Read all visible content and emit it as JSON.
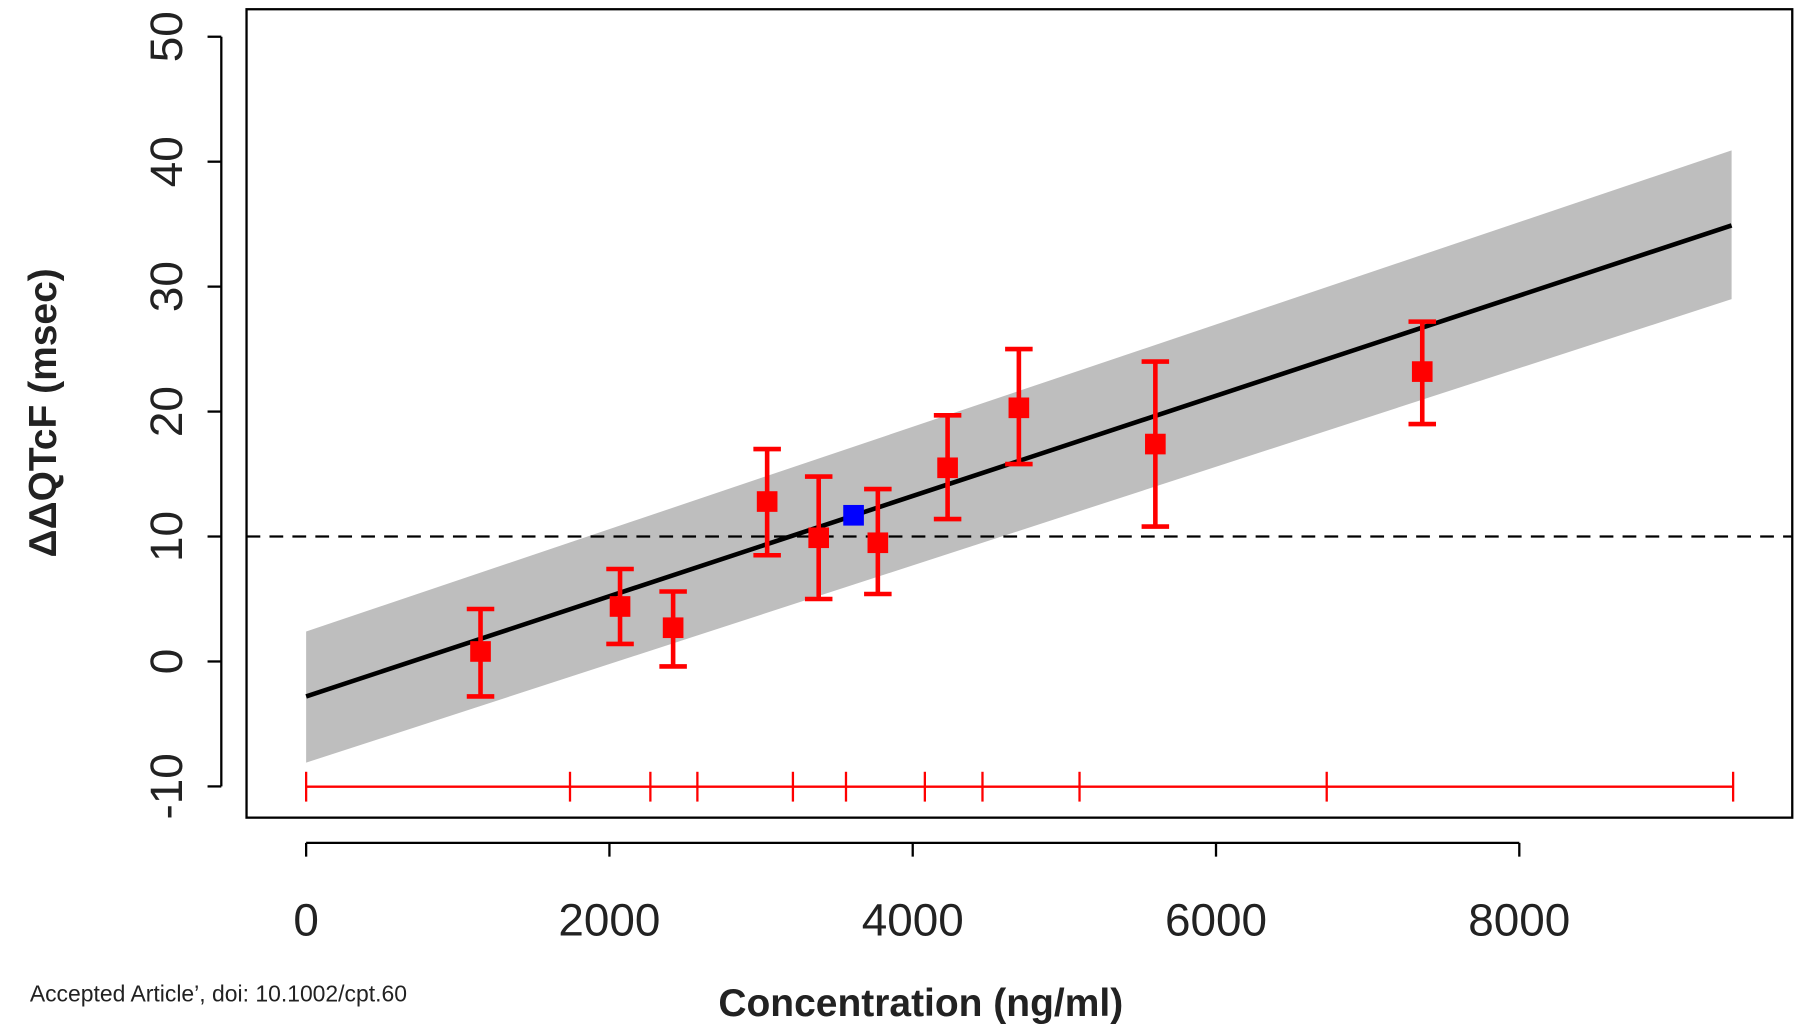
{
  "chart_data": {
    "type": "scatter",
    "x_label": "Concentration (ng/ml)",
    "y_label": "ΔΔQTcF (msec)",
    "footnote": "Accepted Article’, doi: 10.1002/cpt.60",
    "xlim": [
      -393,
      9800
    ],
    "ylim": [
      -12.5,
      52.2
    ],
    "xticks": [
      0,
      2000,
      4000,
      6000,
      8000
    ],
    "yticks": [
      -10,
      0,
      10,
      20,
      30,
      40,
      50
    ],
    "reference_line": 10,
    "series": [
      {
        "color": "#ff0000",
        "x": [
          1150,
          2070,
          2420,
          3040,
          3380,
          3770,
          4230,
          4700,
          5600,
          7360
        ],
        "values": [
          0.8,
          4.4,
          2.7,
          12.8,
          9.9,
          9.5,
          15.5,
          20.3,
          17.4,
          23.2
        ],
        "lower": [
          -2.8,
          1.4,
          -0.4,
          8.5,
          5.0,
          5.4,
          11.4,
          15.8,
          10.8,
          19.0
        ],
        "upper": [
          4.2,
          7.4,
          5.6,
          17.0,
          14.8,
          13.8,
          19.7,
          25.0,
          24.0,
          27.2
        ]
      },
      {
        "color": "#0000ff",
        "x": [
          3610
        ],
        "values": [
          11.7
        ]
      }
    ],
    "fit": {
      "color": "#000000",
      "band_color": "#bebebe",
      "x": [
        0,
        9400
      ],
      "values": [
        -2.8,
        34.9
      ],
      "lower": [
        -8.1,
        29.0
      ],
      "upper": [
        2.4,
        40.9
      ]
    },
    "deciles": {
      "color": "#ff0000",
      "x": [
        0,
        1740,
        2270,
        2580,
        3210,
        3560,
        4080,
        4460,
        5100,
        6730,
        9410
      ]
    }
  }
}
